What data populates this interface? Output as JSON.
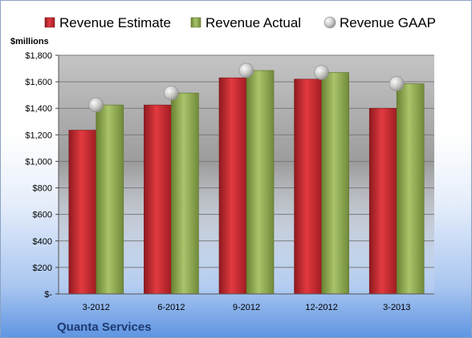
{
  "chart_data": {
    "type": "bar",
    "title": "",
    "ylabel": "$millions",
    "xlabel": "",
    "categories": [
      "3-2012",
      "6-2012",
      "9-2012",
      "12-2012",
      "3-2013"
    ],
    "ylim": [
      0,
      1800
    ],
    "yticks": [
      0,
      200,
      400,
      600,
      800,
      1000,
      1200,
      1400,
      1600,
      1800
    ],
    "ytick_labels": [
      "$-",
      "$200",
      "$400",
      "$600",
      "$800",
      "$1,000",
      "$1,200",
      "$1,400",
      "$1,600",
      "$1,800"
    ],
    "grid": true,
    "legend_position": "top",
    "series": [
      {
        "name": "Revenue Estimate",
        "kind": "bar",
        "color": "#c0282e",
        "values": [
          1235,
          1425,
          1630,
          1620,
          1400
        ]
      },
      {
        "name": "Revenue Actual",
        "kind": "bar",
        "color": "#8fa84e",
        "values": [
          1425,
          1515,
          1685,
          1670,
          1585
        ]
      },
      {
        "name": "Revenue GAAP",
        "kind": "marker",
        "color": "#b8b8b8",
        "values": [
          1425,
          1515,
          1685,
          1670,
          1585
        ]
      }
    ]
  },
  "company": "Quanta Services"
}
